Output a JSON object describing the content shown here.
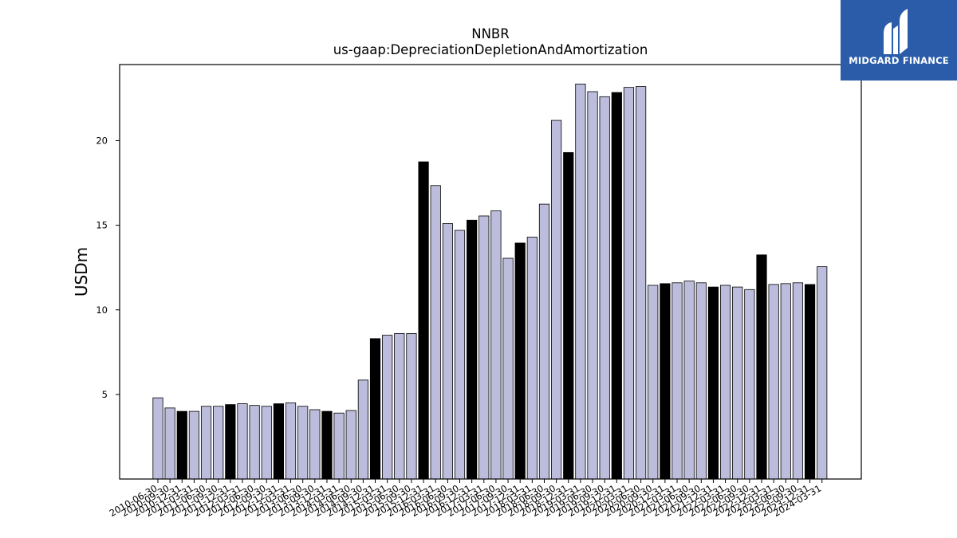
{
  "logo": {
    "text": "MIDGARD FINANCE",
    "background": "#2a5caa"
  },
  "chart_data": {
    "type": "bar",
    "title": "NNBR",
    "subtitle": "us-gaap:DepreciationDepletionAndAmortization",
    "xlabel": "",
    "ylabel": "USDm",
    "ylim": [
      0,
      24.5
    ],
    "yticks": [
      5,
      10,
      15,
      20
    ],
    "grid": false,
    "colors": {
      "quarter": "#bcbddc",
      "annual": "#000000",
      "edge": "#000000"
    },
    "categories": [
      "2010-06-30",
      "2010-09-30",
      "2010-12-31",
      "2011-03-31",
      "2011-06-30",
      "2011-09-30",
      "2011-12-31",
      "2012-03-31",
      "2012-06-30",
      "2012-09-30",
      "2012-12-31",
      "2013-03-31",
      "2013-06-30",
      "2013-09-30",
      "2013-12-31",
      "2014-03-31",
      "2014-06-30",
      "2014-09-30",
      "2014-12-31",
      "2015-03-31",
      "2015-06-30",
      "2015-09-30",
      "2015-12-31",
      "2016-03-31",
      "2016-06-30",
      "2016-09-30",
      "2016-12-31",
      "2017-03-31",
      "2017-06-30",
      "2017-09-30",
      "2017-12-31",
      "2018-03-31",
      "2018-06-30",
      "2018-09-30",
      "2018-12-31",
      "2019-03-31",
      "2019-06-30",
      "2019-09-30",
      "2019-12-31",
      "2020-03-31",
      "2020-06-30",
      "2020-09-30",
      "2020-12-31",
      "2021-03-31",
      "2021-06-30",
      "2021-09-30",
      "2021-12-31",
      "2022-03-31",
      "2022-06-30",
      "2022-09-30",
      "2022-12-31",
      "2023-03-31",
      "2023-06-30",
      "2023-09-30",
      "2023-12-31",
      "2024-03-31"
    ],
    "values": [
      4.8,
      4.2,
      4.0,
      4.0,
      4.3,
      4.3,
      4.4,
      4.45,
      4.35,
      4.3,
      4.45,
      4.5,
      4.3,
      4.1,
      4.0,
      3.9,
      4.05,
      5.85,
      8.3,
      8.5,
      8.6,
      8.6,
      18.75,
      17.35,
      15.1,
      14.7,
      15.3,
      15.55,
      15.85,
      13.05,
      13.95,
      14.3,
      16.25,
      21.2,
      19.3,
      23.35,
      22.9,
      22.6,
      22.85,
      23.15,
      23.2,
      11.45,
      11.55,
      11.6,
      11.7,
      11.6,
      11.35,
      11.45,
      11.35,
      11.2,
      13.25,
      11.5,
      11.55,
      11.6,
      11.5,
      12.55
    ],
    "annual_flags": [
      0,
      0,
      1,
      0,
      0,
      0,
      1,
      0,
      0,
      0,
      1,
      0,
      0,
      0,
      1,
      0,
      0,
      0,
      1,
      0,
      0,
      0,
      1,
      0,
      0,
      0,
      1,
      0,
      0,
      0,
      1,
      0,
      0,
      0,
      1,
      0,
      0,
      0,
      1,
      0,
      0,
      0,
      1,
      0,
      0,
      0,
      1,
      0,
      0,
      0,
      1,
      0,
      0,
      0,
      1,
      0
    ]
  }
}
